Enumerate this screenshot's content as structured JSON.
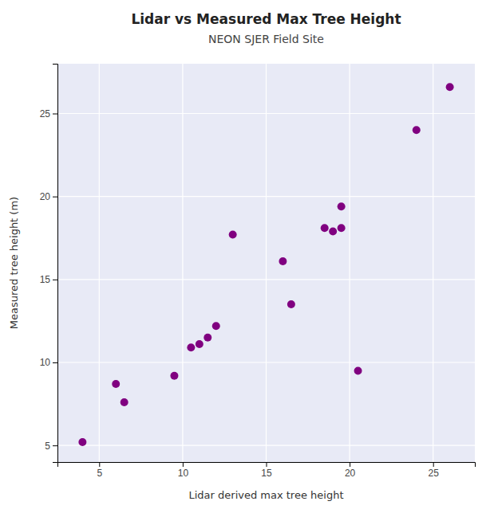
{
  "chart_data": {
    "type": "scatter",
    "title": "Lidar vs Measured Max Tree Height",
    "subtitle": "NEON SJER Field Site",
    "xlabel": "Lidar derived max tree height",
    "ylabel": "Measured tree height (m)",
    "x": [
      4.0,
      6.0,
      6.5,
      9.5,
      10.5,
      11.0,
      11.5,
      12.0,
      13.0,
      16.0,
      16.5,
      18.5,
      19.0,
      19.5,
      19.5,
      20.5,
      24.0,
      26.0
    ],
    "values": [
      5.2,
      8.7,
      7.6,
      9.2,
      10.9,
      11.1,
      11.5,
      12.2,
      17.7,
      16.1,
      13.5,
      18.1,
      17.9,
      19.4,
      18.1,
      9.5,
      24.0,
      26.6
    ],
    "color": "#800080",
    "marker": "circle",
    "xlim": [
      2.5,
      27.5
    ],
    "ylim": [
      4,
      28
    ],
    "xticks": [
      5,
      10,
      15,
      20,
      25
    ],
    "yticks": [
      5,
      10,
      15,
      20,
      25
    ],
    "grid": true
  }
}
